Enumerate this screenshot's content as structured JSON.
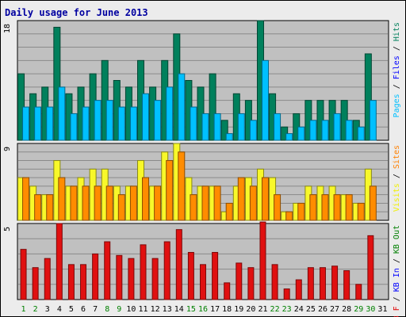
{
  "chart_data": {
    "type": "bar",
    "title": "Daily usage for June 2013",
    "categories": [
      "1",
      "2",
      "3",
      "4",
      "5",
      "6",
      "7",
      "8",
      "9",
      "10",
      "11",
      "12",
      "13",
      "14",
      "15",
      "16",
      "17",
      "18",
      "19",
      "20",
      "21",
      "22",
      "23",
      "24",
      "25",
      "26",
      "27",
      "28",
      "29",
      "30",
      "31"
    ],
    "weekend_days": [
      "1",
      "2",
      "8",
      "9",
      "15",
      "16",
      "22",
      "23",
      "29",
      "30"
    ],
    "panels": [
      {
        "name": "top",
        "ymax_label": "18",
        "ylim": [
          0,
          18
        ],
        "legend_labels": [
          "Pages",
          " / ",
          "Files",
          " / ",
          "Hits"
        ],
        "legend_colors": [
          "#00c0ff",
          "#000000",
          "#0000ff",
          "#000000",
          "#00805c"
        ],
        "series": [
          {
            "name": "Hits",
            "color": "#00805c",
            "values": [
              10,
              7,
              8,
              17,
              7,
              8,
              10,
              12,
              9,
              8,
              12,
              8,
              12,
              16,
              9,
              8,
              10,
              3,
              7,
              6,
              18,
              7,
              2,
              4,
              6,
              6,
              6,
              6,
              3,
              13,
              0
            ]
          },
          {
            "name": "Pages",
            "color": "#00c0ff",
            "values": [
              5,
              5,
              5,
              8,
              4,
              5,
              6,
              6,
              5,
              5,
              7,
              6,
              8,
              10,
              5,
              4,
              4,
              1,
              4,
              3,
              12,
              4,
              1,
              2,
              3,
              3,
              4,
              3,
              2,
              6,
              0
            ]
          }
        ]
      },
      {
        "name": "middle",
        "ymax_label": "9",
        "ylim": [
          0,
          9
        ],
        "legend_labels": [
          "Visits",
          " / ",
          "Sites"
        ],
        "legend_colors": [
          "#f0f000",
          "#000000",
          "#ff8000"
        ],
        "series": [
          {
            "name": "Visits",
            "color": "#f8f82a",
            "values": [
              5,
              4,
              3,
              7,
              4,
              5,
              6,
              6,
              4,
              4,
              7,
              4,
              8,
              9,
              5,
              4,
              4,
              1,
              4,
              5,
              6,
              5,
              1,
              2,
              4,
              4,
              4,
              3,
              2,
              6,
              0
            ]
          },
          {
            "name": "Sites",
            "color": "#ff8c00",
            "values": [
              5,
              3,
              3,
              5,
              4,
              4,
              4,
              4,
              3,
              4,
              5,
              4,
              7,
              8,
              3,
              4,
              4,
              2,
              5,
              4,
              5,
              3,
              1,
              2,
              3,
              3,
              3,
              3,
              2,
              4,
              0
            ]
          }
        ]
      },
      {
        "name": "bottom",
        "ymax_label": "5",
        "ylim": [
          0,
          5
        ],
        "legend_labels": [
          "KB F",
          " / ",
          "KB In",
          " / ",
          "KB Out"
        ],
        "legend_colors": [
          "#e00000",
          "#000000",
          "#0000ff",
          "#000000",
          "#008000"
        ],
        "series": [
          {
            "name": "KB F",
            "color": "#e01010",
            "values": [
              3.3,
              2.1,
              2.7,
              5.0,
              2.3,
              2.3,
              3.0,
              3.8,
              2.9,
              2.7,
              3.6,
              2.7,
              3.8,
              4.6,
              3.1,
              2.3,
              3.1,
              1.1,
              2.4,
              2.1,
              5.1,
              2.3,
              0.7,
              1.3,
              2.1,
              2.1,
              2.2,
              1.9,
              1.0,
              4.2,
              0
            ]
          }
        ]
      }
    ]
  }
}
